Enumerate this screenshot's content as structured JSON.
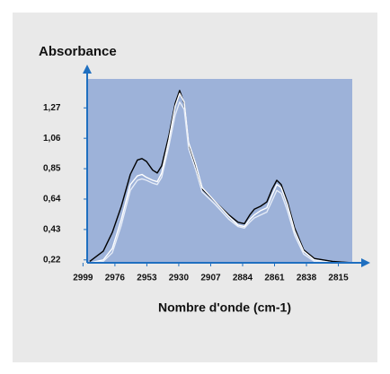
{
  "chart_data": {
    "type": "line",
    "ylabel": "Absorbance",
    "xlabel": "Nombre d'onde (cm-1)",
    "x": [
      2994.1,
      2984.4,
      2977.9,
      2971.4,
      2964.9,
      2959.8,
      2956.5,
      2953.3,
      2948.8,
      2945.5,
      2942.3,
      2937.1,
      2932.6,
      2929.4,
      2926.1,
      2922.9,
      2917.7,
      2913.2,
      2903.5,
      2893.8,
      2887.3,
      2882.7,
      2878.9,
      2875.6,
      2871.1,
      2866.6,
      2862.7,
      2859.4,
      2856.2,
      2851.7,
      2846.5,
      2840.0,
      2832.3,
      2819.3,
      2805.0
    ],
    "series": [
      {
        "color": "#000000",
        "values": [
          0.21,
          0.28,
          0.41,
          0.59,
          0.81,
          0.91,
          0.92,
          0.9,
          0.84,
          0.82,
          0.87,
          1.08,
          1.3,
          1.39,
          1.3,
          1.02,
          0.87,
          0.71,
          0.62,
          0.53,
          0.48,
          0.47,
          0.53,
          0.57,
          0.59,
          0.62,
          0.71,
          0.77,
          0.74,
          0.62,
          0.44,
          0.29,
          0.23,
          0.21,
          0.2
        ]
      },
      {
        "color": "#ffffff",
        "values": [
          0.2,
          0.22,
          0.3,
          0.5,
          0.74,
          0.8,
          0.81,
          0.79,
          0.77,
          0.76,
          0.82,
          1.05,
          1.28,
          1.37,
          1.31,
          1.03,
          0.88,
          0.72,
          0.62,
          0.52,
          0.46,
          0.45,
          0.5,
          0.53,
          0.56,
          0.58,
          0.67,
          0.74,
          0.72,
          0.6,
          0.42,
          0.28,
          0.22,
          0.2,
          0.2
        ]
      },
      {
        "color": "#e6ecf7",
        "values": [
          0.2,
          0.21,
          0.27,
          0.46,
          0.7,
          0.77,
          0.78,
          0.77,
          0.75,
          0.74,
          0.79,
          1.01,
          1.22,
          1.31,
          1.26,
          0.99,
          0.84,
          0.69,
          0.6,
          0.5,
          0.45,
          0.44,
          0.48,
          0.51,
          0.53,
          0.55,
          0.63,
          0.7,
          0.68,
          0.56,
          0.39,
          0.26,
          0.21,
          0.2,
          0.2
        ]
      }
    ],
    "xlim": [
      2996,
      2805
    ],
    "ylim": [
      0.2,
      1.47
    ],
    "xticks": [
      2999,
      2976,
      2953,
      2930,
      2907,
      2884,
      2861,
      2838,
      2815
    ],
    "yticks": [
      {
        "value": 0.22,
        "label": "0,22"
      },
      {
        "value": 0.43,
        "label": "0,43"
      },
      {
        "value": 0.64,
        "label": "0,64"
      },
      {
        "value": 0.85,
        "label": "0,85"
      },
      {
        "value": 1.06,
        "label": "1,06"
      },
      {
        "value": 1.27,
        "label": "1,27"
      }
    ],
    "plot_color": "#9db2d9",
    "axis_color": "#1f6fc0"
  }
}
